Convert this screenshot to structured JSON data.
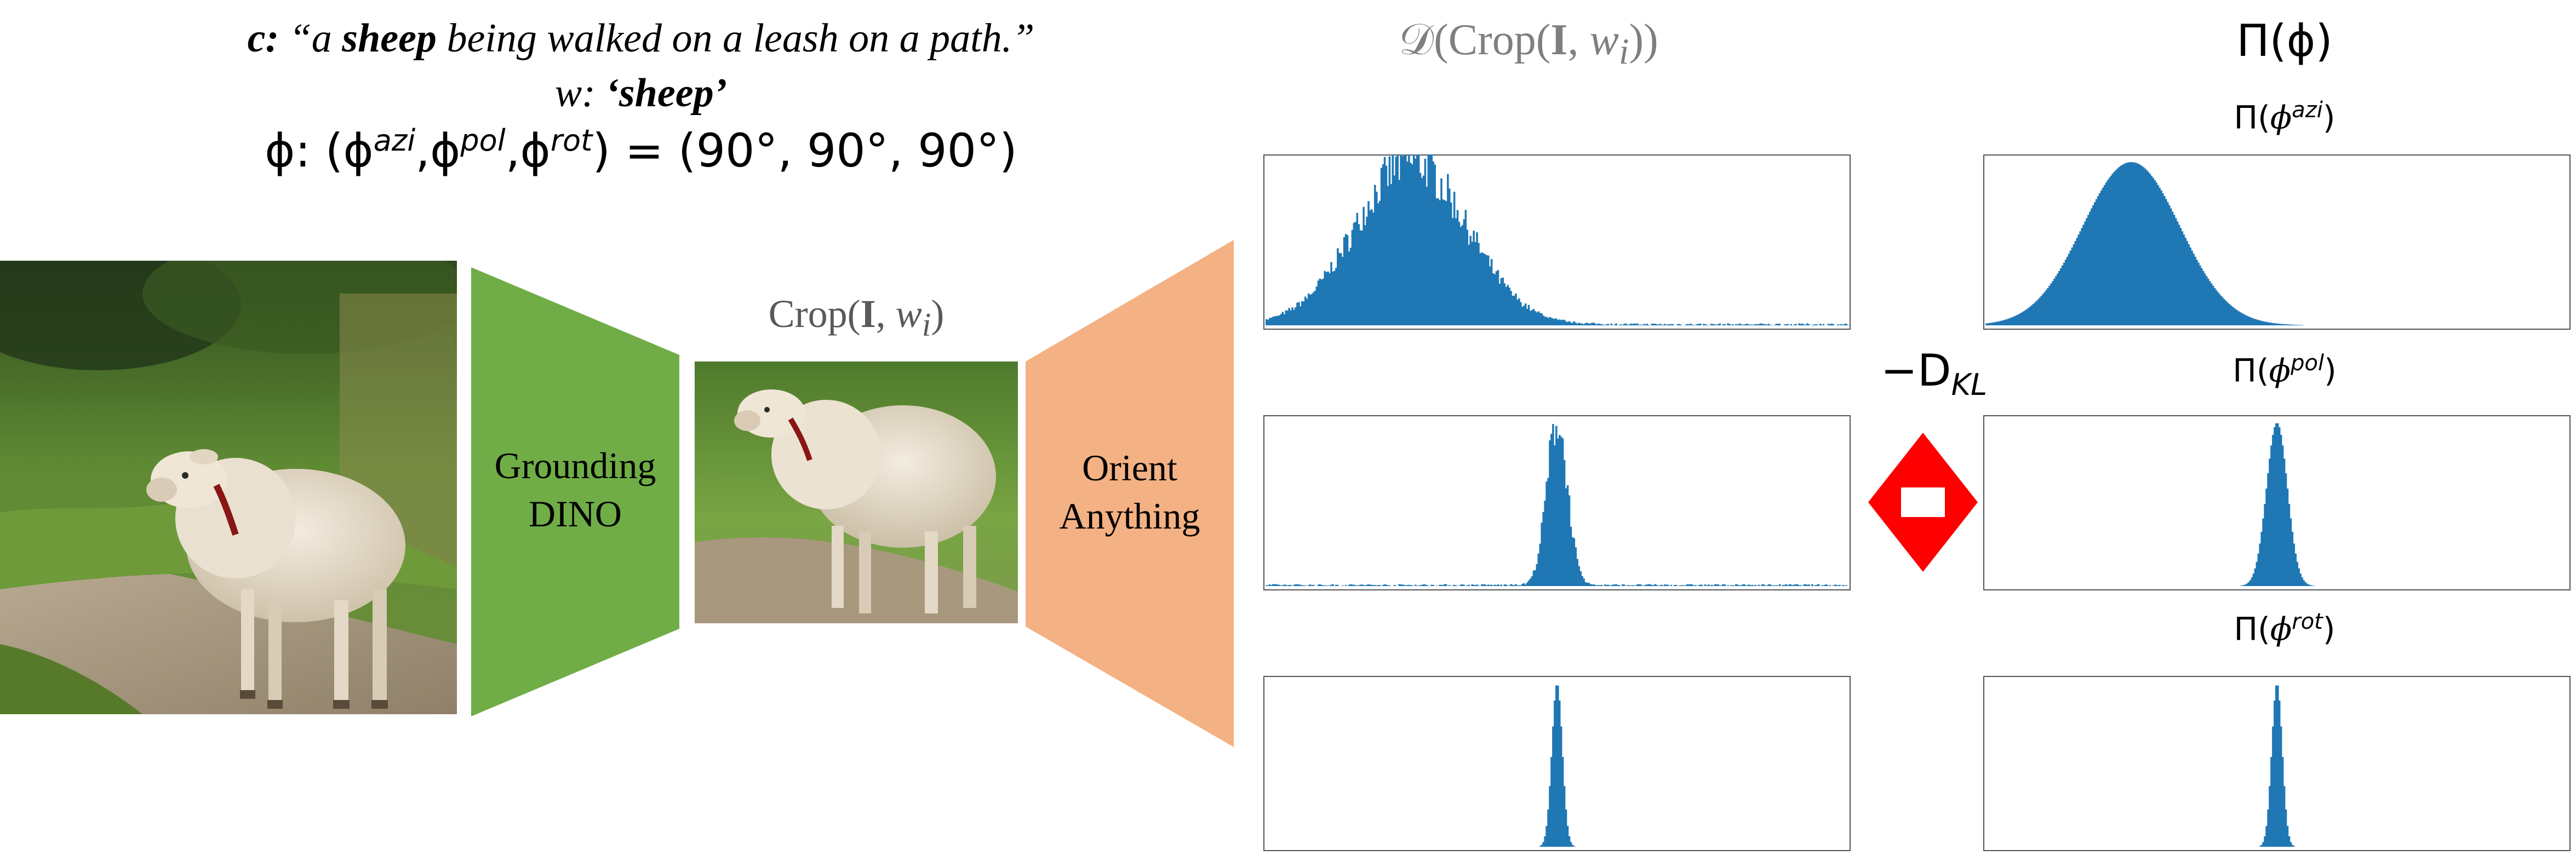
{
  "caption": {
    "c_prefix": "c:",
    "c_text_1": "“a ",
    "c_bold": "sheep",
    "c_text_2": " being walked on a leash on a path.”",
    "w_prefix": "w: ",
    "w_value": "‘sheep’",
    "phi_prefix": "ϕ: ",
    "phi_lhs_open": "(",
    "phi_azi": "azi",
    "phi_pol": "pol",
    "phi_rot": "rot",
    "phi_rhs": ") = (90°, 90°, 90°)"
  },
  "models": {
    "grounding_line1": "Grounding",
    "grounding_line2": "DINO",
    "orient_line1": "Orient",
    "orient_line2": "Anything",
    "grounding_color": "#70ad47",
    "orient_color": "#f4b183"
  },
  "crop_label": {
    "prefix": "Crop(",
    "bold": "I",
    "suffix": ", ",
    "w": "w",
    "sub": "i",
    "close": ")"
  },
  "headers": {
    "predicted": {
      "D": "𝒟",
      "open": "(Crop(",
      "bold": "I",
      "mid": ", ",
      "w": "w",
      "sub": "i",
      "close": "))"
    },
    "prior": "Π(ϕ)",
    "prior_azi": "azi",
    "prior_pol": "pol",
    "prior_rot": "rot"
  },
  "kl": {
    "text": "−D",
    "sub": "KL",
    "arrow_color": "#ff0000"
  },
  "chart_data": [
    {
      "type": "bar",
      "name": "predicted azimuth",
      "center": 90,
      "spread": 34,
      "noise": true,
      "xlim": [
        0,
        360
      ],
      "color": "#1f77b4"
    },
    {
      "type": "bar",
      "name": "predicted polar",
      "center": 90,
      "spread": 3.2,
      "noise": true,
      "xlim": [
        0,
        180
      ],
      "color": "#1f77b4"
    },
    {
      "type": "bar",
      "name": "predicted rotation",
      "center": 90,
      "spread": 1.6,
      "noise": false,
      "xlim": [
        0,
        180
      ],
      "color": "#1f77b4"
    },
    {
      "type": "bar",
      "name": "prior azimuth",
      "center": 90,
      "spread": 30,
      "noise": false,
      "xlim": [
        0,
        360
      ],
      "color": "#1f77b4"
    },
    {
      "type": "bar",
      "name": "prior polar",
      "center": 90,
      "spread": 3.2,
      "noise": false,
      "xlim": [
        0,
        180
      ],
      "color": "#1f77b4"
    },
    {
      "type": "bar",
      "name": "prior rotation",
      "center": 90,
      "spread": 1.6,
      "noise": false,
      "xlim": [
        0,
        180
      ],
      "color": "#1f77b4"
    }
  ]
}
